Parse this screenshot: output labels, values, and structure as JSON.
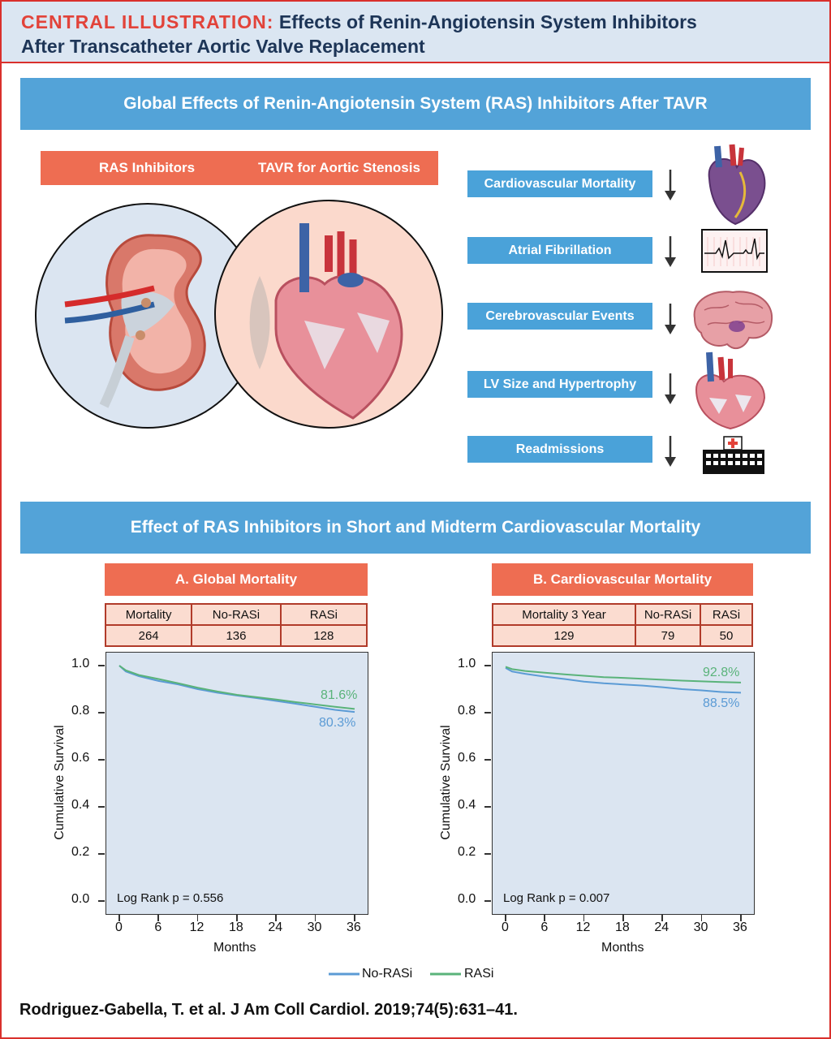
{
  "header": {
    "tag": "CENTRAL ILLUSTRATION:",
    "title_line1": "Effects of Renin-Angiotensin System Inhibitors",
    "title_line2": "After Transcatheter Aortic Valve Replacement"
  },
  "section1": {
    "banner": "Global Effects of Renin-Angiotensin System (RAS) Inhibitors After TAVR",
    "left_label": "RAS Inhibitors",
    "right_label": "TAVR for Aortic Stenosis",
    "effects": [
      {
        "label": "Cardiovascular Mortality",
        "icon": "heart-icon"
      },
      {
        "label": "Atrial Fibrillation",
        "icon": "ecg-icon"
      },
      {
        "label": "Cerebrovascular Events",
        "icon": "brain-icon"
      },
      {
        "label": "LV Size and Hypertrophy",
        "icon": "heart-cross-section-icon"
      },
      {
        "label": "Readmissions",
        "icon": "hospital-icon"
      }
    ]
  },
  "section2": {
    "banner": "Effect of RAS Inhibitors in Short and Midterm Cardiovascular Mortality"
  },
  "panel_a": {
    "title": "A. Global Mortality",
    "table_headers": [
      "Mortality",
      "No-RASi",
      "RASi"
    ],
    "table_values": [
      "264",
      "136",
      "128"
    ],
    "ylabel": "Cumulative Survival",
    "xlabel": "Months",
    "yticks": [
      "0.0",
      "0.2",
      "0.4",
      "0.6",
      "0.8",
      "1.0"
    ],
    "xticks": [
      "0",
      "6",
      "12",
      "18",
      "24",
      "30",
      "36"
    ],
    "log_rank": "Log Rank p = 0.556",
    "rasi_label": "81.6%",
    "norasi_label": "80.3%"
  },
  "panel_b": {
    "title": "B. Cardiovascular Mortality",
    "table_headers": [
      "Mortality 3 Year",
      "No-RASi",
      "RASi"
    ],
    "table_values": [
      "129",
      "79",
      "50"
    ],
    "ylabel": "Cumulative Survival",
    "xlabel": "Months",
    "yticks": [
      "0.0",
      "0.2",
      "0.4",
      "0.6",
      "0.8",
      "1.0"
    ],
    "xticks": [
      "0",
      "6",
      "12",
      "18",
      "24",
      "30",
      "36"
    ],
    "log_rank": "Log Rank p = 0.007",
    "rasi_label": "92.8%",
    "norasi_label": "88.5%"
  },
  "legend": {
    "norasi": "No-RASi",
    "rasi": "RASi"
  },
  "citation": "Rodriguez-Gabella, T. et al. J Am Coll Cardiol. 2019;74(5):631–41.",
  "colors": {
    "accent_red": "#d9302c",
    "banner_blue": "#53a3d8",
    "orange": "#ee6d52",
    "norasi_blue": "#5b9bd5",
    "rasi_green": "#5ab37a",
    "plot_bg": "#dbe5f1"
  },
  "chart_data": [
    {
      "type": "line",
      "title": "A. Global Mortality",
      "xlabel": "Months",
      "ylabel": "Cumulative Survival",
      "xlim": [
        0,
        36
      ],
      "ylim": [
        0,
        1
      ],
      "series": [
        {
          "name": "No-RASi",
          "x": [
            0,
            1,
            3,
            6,
            9,
            12,
            15,
            18,
            21,
            24,
            27,
            30,
            33,
            36
          ],
          "y": [
            1.0,
            0.975,
            0.955,
            0.935,
            0.92,
            0.9,
            0.885,
            0.873,
            0.862,
            0.85,
            0.838,
            0.825,
            0.812,
            0.803
          ]
        },
        {
          "name": "RASi",
          "x": [
            0,
            1,
            3,
            6,
            9,
            12,
            15,
            18,
            21,
            24,
            27,
            30,
            33,
            36
          ],
          "y": [
            1.0,
            0.98,
            0.96,
            0.943,
            0.925,
            0.906,
            0.89,
            0.876,
            0.866,
            0.856,
            0.845,
            0.835,
            0.825,
            0.816
          ]
        }
      ]
    },
    {
      "type": "line",
      "title": "B. Cardiovascular Mortality",
      "xlabel": "Months",
      "ylabel": "Cumulative Survival",
      "xlim": [
        0,
        36
      ],
      "ylim": [
        0,
        1
      ],
      "series": [
        {
          "name": "No-RASi",
          "x": [
            0,
            1,
            3,
            6,
            9,
            12,
            15,
            18,
            21,
            24,
            27,
            30,
            33,
            36
          ],
          "y": [
            0.99,
            0.975,
            0.965,
            0.953,
            0.943,
            0.932,
            0.925,
            0.92,
            0.915,
            0.908,
            0.9,
            0.895,
            0.888,
            0.885
          ]
        },
        {
          "name": "RASi",
          "x": [
            0,
            1,
            3,
            6,
            9,
            12,
            15,
            18,
            21,
            24,
            27,
            30,
            33,
            36
          ],
          "y": [
            0.995,
            0.985,
            0.977,
            0.97,
            0.963,
            0.957,
            0.951,
            0.948,
            0.944,
            0.94,
            0.936,
            0.933,
            0.93,
            0.928
          ]
        }
      ]
    }
  ]
}
